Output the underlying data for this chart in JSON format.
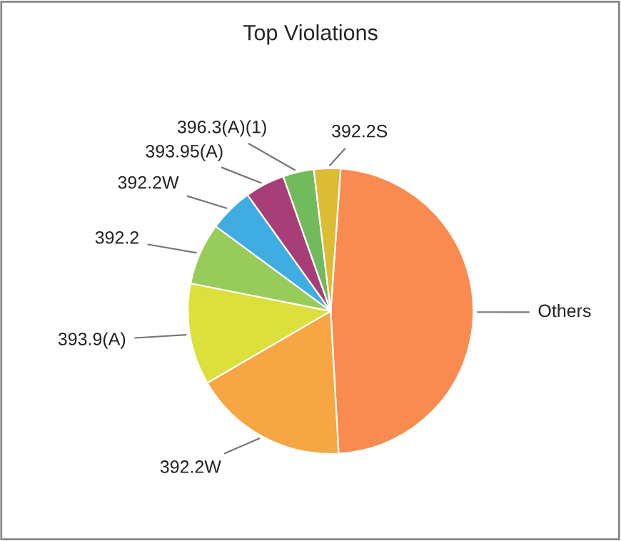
{
  "chart_data": {
    "type": "pie",
    "title": "Top Violations",
    "categories": [
      "Others",
      "392.2W",
      "393.9(A)",
      "392.2",
      "392.2W",
      "393.95(A)",
      "396.3(A)(1)",
      "392.2S"
    ],
    "values": [
      48,
      17.5,
      11.5,
      7,
      5,
      4.5,
      3.5,
      3
    ],
    "colors": [
      "#f98b50",
      "#f6a642",
      "#dbe03c",
      "#98cc5a",
      "#40ade2",
      "#a83e78",
      "#72bb5c",
      "#dcbb35"
    ]
  }
}
